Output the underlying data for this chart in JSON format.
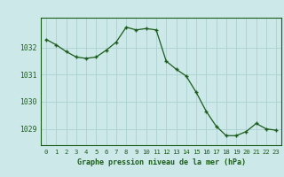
{
  "x": [
    0,
    1,
    2,
    3,
    4,
    5,
    6,
    7,
    8,
    9,
    10,
    11,
    12,
    13,
    14,
    15,
    16,
    17,
    18,
    19,
    20,
    21,
    22,
    23
  ],
  "y": [
    1032.3,
    1032.1,
    1031.85,
    1031.65,
    1031.6,
    1031.65,
    1031.9,
    1032.2,
    1032.75,
    1032.65,
    1032.7,
    1032.65,
    1031.5,
    1031.2,
    1030.95,
    1030.35,
    1029.65,
    1029.1,
    1028.75,
    1028.75,
    1028.9,
    1029.2,
    1029.0,
    1028.95
  ],
  "line_color": "#1a5c1a",
  "marker": "+",
  "bg_color": "#cce8e8",
  "grid_color": "#b0d4d4",
  "text_color": "#1a5c1a",
  "xlabel": "Graphe pression niveau de la mer (hPa)",
  "ylim": [
    1028.4,
    1033.1
  ],
  "yticks": [
    1029,
    1030,
    1031,
    1032
  ],
  "xticks": [
    0,
    1,
    2,
    3,
    4,
    5,
    6,
    7,
    8,
    9,
    10,
    11,
    12,
    13,
    14,
    15,
    16,
    17,
    18,
    19,
    20,
    21,
    22,
    23
  ]
}
